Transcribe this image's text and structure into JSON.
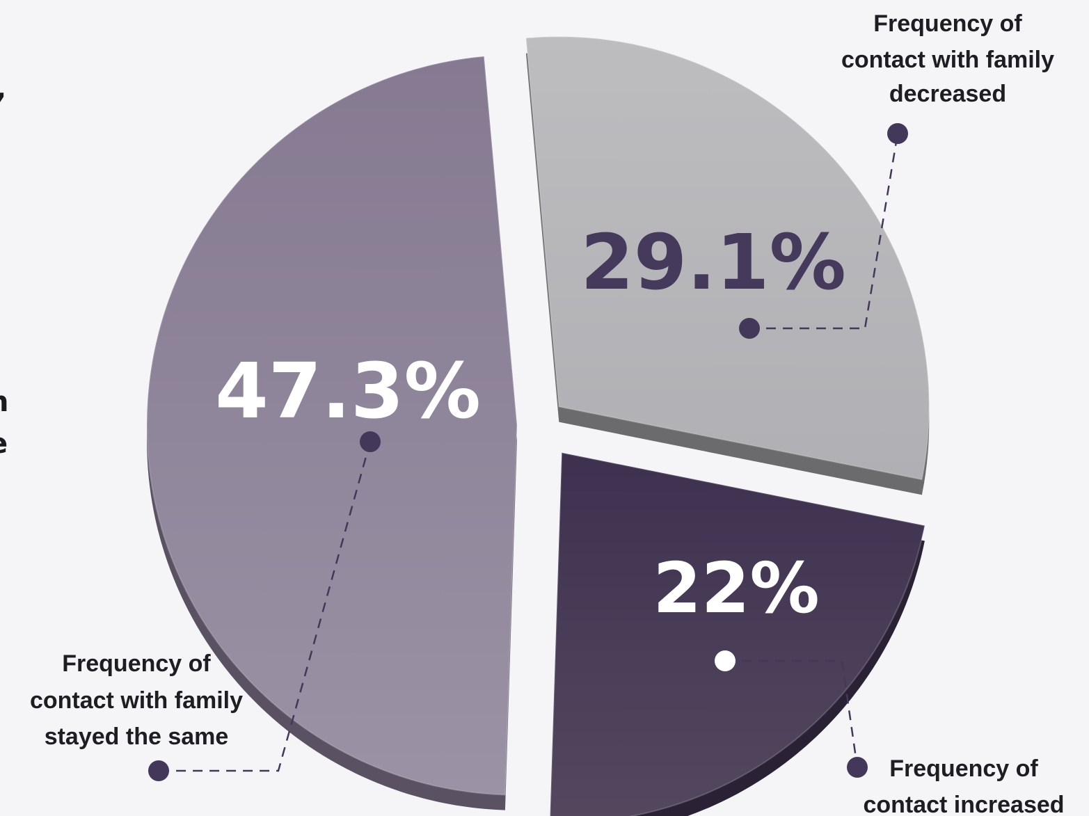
{
  "cropped_text": {
    "comma": ",",
    "letter_n": "n",
    "letter_e": "e"
  },
  "colors": {
    "background": "#f5f5f7",
    "slice_same": "#8f8499",
    "slice_decreased": "#b8b8bb",
    "slice_increased": "#483b58",
    "label_dark": "#463a5c",
    "label_light": "#ffffff",
    "leader_dot": "#44385a"
  },
  "chart_data": {
    "type": "pie",
    "style": "3d-exploded",
    "title": "",
    "slices": [
      {
        "key": "same",
        "value": 47.3,
        "value_label": "47.3%",
        "label_lines": [
          "Frequency of",
          "contact with family",
          "stayed the same"
        ]
      },
      {
        "key": "decreased",
        "value": 29.1,
        "value_label": "29.1%",
        "label_lines": [
          "Frequency of",
          "contact with family",
          "decreased"
        ]
      },
      {
        "key": "increased",
        "value": 22,
        "value_label": "22%",
        "label_lines": [
          "Frequency of",
          "contact increased"
        ]
      }
    ]
  }
}
